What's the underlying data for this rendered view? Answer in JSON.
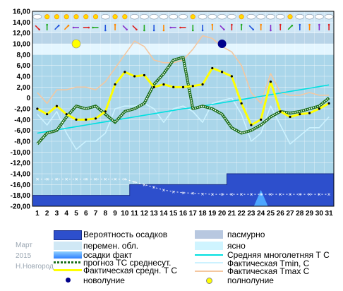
{
  "chart_data": {
    "type": "line",
    "x": [
      1,
      2,
      3,
      4,
      5,
      6,
      7,
      8,
      9,
      10,
      11,
      12,
      13,
      14,
      15,
      16,
      17,
      18,
      19,
      20,
      21,
      22,
      23,
      24,
      25,
      26,
      27,
      28,
      29,
      30,
      31
    ],
    "x_ticks": [
      "1",
      "2",
      "3",
      "4",
      "5",
      "6",
      "7",
      "8",
      "9",
      "10",
      "11",
      "12",
      "13",
      "14",
      "15",
      "16",
      "17",
      "18",
      "19",
      "20",
      "21",
      "22",
      "23",
      "24",
      "25",
      "26",
      "27",
      "28",
      "29",
      "30",
      "31"
    ],
    "y_ticks": [
      "16,00",
      "14,00",
      "12,00",
      "10,00",
      "8,00",
      "6,00",
      "4,00",
      "2,00",
      "0",
      "-2,00",
      "-4,00",
      "-6,00",
      "-8,00",
      "-10,00",
      "-12,00",
      "-14,00",
      "-16,00",
      "-18,00",
      "-20,00"
    ],
    "ylim": [
      -20,
      16
    ],
    "xlim": [
      1,
      31
    ],
    "grid": true,
    "series": [
      {
        "name": "Фактическая средн. Т С",
        "color": "#ffff00",
        "values": [
          -2.0,
          -3.0,
          -1.5,
          -3.0,
          -4.0,
          -4.0,
          -3.8,
          -2.5,
          2.5,
          4.8,
          4.0,
          4.2,
          2.0,
          2.5,
          2.0,
          2.0,
          2.2,
          2.5,
          5.5,
          4.8,
          4.0,
          -1.0,
          -5.0,
          -4.0,
          3.0,
          -2.5,
          -3.5,
          -3.0,
          -2.8,
          -2.0,
          -1.0
        ]
      },
      {
        "name": "прогноз ТС среднесут.",
        "color": "#1a6e1a",
        "values": [
          -8.5,
          -6.5,
          -6.0,
          -3.5,
          -1.5,
          -2.0,
          -1.5,
          -3.0,
          -4.5,
          -2.5,
          -2.0,
          -1.0,
          2.5,
          4.5,
          7.0,
          7.5,
          -2.0,
          -1.5,
          -2.0,
          -3.0,
          -5.5,
          -6.5,
          -6.0,
          -5.0,
          -3.5,
          -2.5,
          -2.8,
          -2.5,
          -2.0,
          -1.5,
          0.0
        ]
      },
      {
        "name": "Фактическая Tmin, С",
        "color": "#ccf2ff",
        "values": [
          -3.0,
          -5.0,
          -2.5,
          -6.5,
          -9.5,
          -8.0,
          -8.0,
          -6.5,
          -2.0,
          -1.5,
          -1.5,
          -1.0,
          -2.0,
          -4.5,
          -2.0,
          -1.5,
          -2.5,
          -4.5,
          -1.0,
          -0.5,
          0.0,
          -3.0,
          -8.0,
          -6.5,
          -1.5,
          -5.0,
          -8.5,
          -7.0,
          -5.5,
          -5.5,
          -3.5
        ]
      },
      {
        "name": "Фактическая Tmax С",
        "color": "#f4c7a0",
        "values": [
          1.0,
          -1.0,
          1.5,
          1.5,
          2.0,
          2.0,
          1.5,
          3.0,
          5.5,
          8.0,
          10.5,
          9.5,
          7.0,
          6.5,
          6.5,
          7.0,
          9.0,
          11.5,
          11.0,
          9.5,
          8.5,
          6.0,
          1.0,
          -1.0,
          4.5,
          1.0,
          0.5,
          0.5,
          1.0,
          0.5,
          0.5
        ]
      },
      {
        "name": "Средняя многолетняя Т С",
        "color": "#00e0e0",
        "values": [
          -6.5,
          -6.2,
          -5.9,
          -5.6,
          -5.3,
          -5.0,
          -4.7,
          -4.4,
          -4.1,
          -3.8,
          -3.5,
          -3.2,
          -2.9,
          -2.6,
          -2.3,
          -2.0,
          -1.8,
          -1.5,
          -1.2,
          -0.9,
          -0.6,
          -0.3,
          0.0,
          0.3,
          0.6,
          0.9,
          1.2,
          1.5,
          1.8,
          2.1,
          2.4
        ]
      }
    ],
    "precip_probability_level": [
      -18,
      -18,
      -18,
      -18,
      -18,
      -18,
      -18,
      -18,
      -18,
      -18,
      -16,
      -16,
      -16,
      -16,
      -16,
      -16,
      -16,
      -16,
      -16,
      -16,
      -14,
      -14,
      -14,
      -14,
      -14,
      -14,
      -14,
      -14,
      -14,
      -14,
      -14
    ],
    "snow_cover_forecast": [
      -15,
      -15,
      -15,
      -15,
      -15,
      -15,
      -15,
      -15,
      -15,
      -15,
      -15.5,
      -16,
      -16.5,
      -17,
      -17.3,
      -17.5,
      -17.6,
      -17.7,
      -17.8,
      -17.8,
      -17.8,
      -17.8,
      -17.8,
      -17.8,
      -17.8,
      -17.8,
      -17.8,
      -17.8,
      -17.8,
      -17.8,
      -17.8
    ],
    "precip_fact_day": 24,
    "new_moon_day": 20,
    "full_moon_day": 5
  },
  "legend": {
    "items": [
      {
        "key": "precip_prob",
        "label": "Вероятность осадков",
        "color": "#2d4fcc"
      },
      {
        "key": "overcast",
        "label": "пасмурно",
        "color": "#b8c8e0"
      },
      {
        "key": "variable",
        "label": "перемен. обл.",
        "color": "#d0e8f5"
      },
      {
        "key": "clear",
        "label": "ясно",
        "color": "#cff4ff"
      },
      {
        "key": "precip_fact",
        "label": "осадки факт",
        "color": "#4da6ff"
      },
      {
        "key": "avg_long",
        "label": "Средняя многолетняя Т С",
        "color": "#00e0e0"
      },
      {
        "key": "forecast",
        "label": "прогноз ТС среднесут.",
        "color": "#1a6e1a"
      },
      {
        "key": "fact_tmin",
        "label": "Фактическая Tmin, С",
        "color": "#ccf2ff"
      },
      {
        "key": "fact_avg",
        "label": "Фактическая средн. Т С",
        "color": "#ffff00"
      },
      {
        "key": "fact_tmax",
        "label": "Фактическая Tmax С",
        "color": "#f4c7a0"
      },
      {
        "key": "new_moon",
        "label": "новолуние",
        "color": "#00008b"
      },
      {
        "key": "full_moon",
        "label": "полнолуние",
        "color": "#ffff00"
      }
    ]
  },
  "meta": {
    "month": "Март",
    "year": "2015",
    "city": "Н.Новгород"
  },
  "weather_icons": [
    "cloud",
    "sun",
    "sun",
    "sun",
    "sun",
    "sun",
    "sun",
    "cloud",
    "sun",
    "sun",
    "cloud",
    "cloud",
    "cloud",
    "cloud",
    "cloud",
    "cloud",
    "sun",
    "cloud",
    "cloud",
    "cloud",
    "cloud",
    "sun",
    "cloud",
    "cloud",
    "cloud",
    "cloud",
    "sun",
    "cloud",
    "cloud",
    "cloud",
    "cloud"
  ],
  "wind_icons": [
    "arrow-down-right",
    "arrow-up",
    "arrow-up-right",
    "arrow-up-right",
    "arrow-left",
    "arrow-right",
    "arrow-left",
    "arrow-down",
    "arrow-up",
    "arrow-down-right",
    "arrow-down-right",
    "arrow-down",
    "arrow-down",
    "arrow-down",
    "arrow-left",
    "arrow-left",
    "arrow-down",
    "arrow-down",
    "arrow-up",
    "arrow-down-right",
    "arrow-up",
    "arrow-up",
    "arrow-down-right",
    "arrow-up",
    "arrow-down",
    "arrow-up",
    "arrow-up-right",
    "arrow-up",
    "arrow-up",
    "arrow-up",
    "arrow-up"
  ]
}
